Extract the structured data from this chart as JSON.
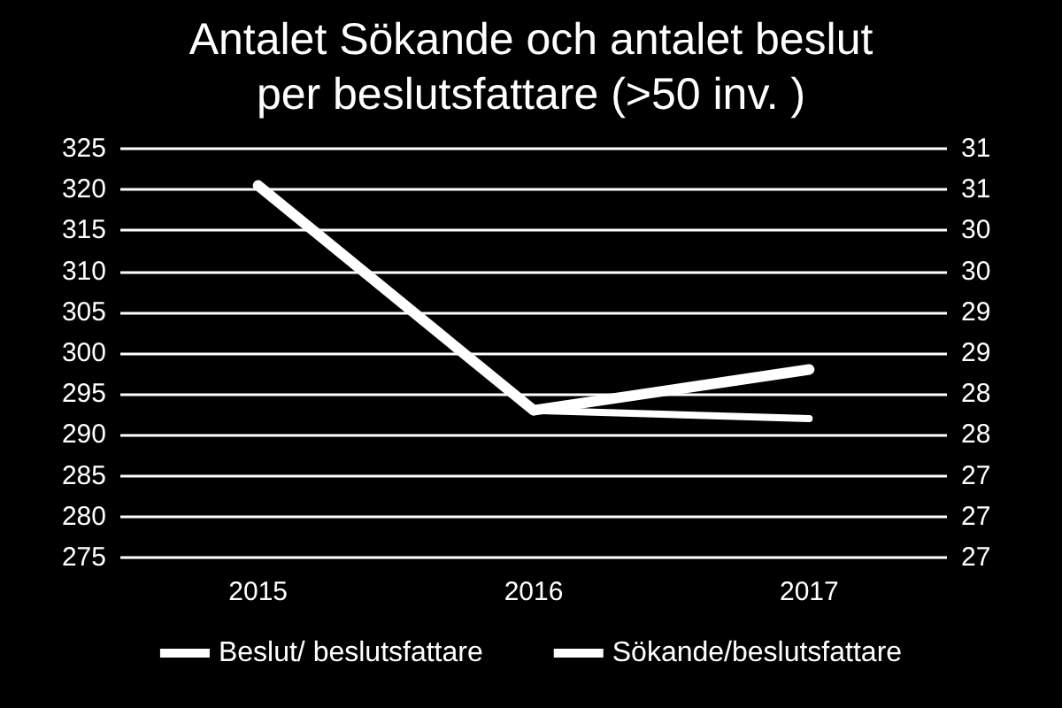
{
  "chart_data": {
    "type": "line",
    "title": "Antalet Sökande och antalet beslut\nper beslutsfattare (>50 inv. )",
    "categories": [
      "2015",
      "2016",
      "2017"
    ],
    "series": [
      {
        "name": "Beslut/ beslutsfattare",
        "color": "#ffffff",
        "values": [
          320.5,
          293,
          298
        ]
      },
      {
        "name": "Sökande/beslutsfattare",
        "color": "#ffffff",
        "values": [
          31.05,
          28.3,
          28.2
        ],
        "axis": "y2"
      }
    ],
    "ylim": [
      275,
      325
    ],
    "yticks": [
      275,
      280,
      285,
      290,
      295,
      300,
      305,
      310,
      315,
      320,
      325
    ],
    "y2lim": [
      26.5,
      31.5
    ],
    "y2ticks": [
      {
        "value": 26.5,
        "label": "27"
      },
      {
        "value": 27,
        "label": "27"
      },
      {
        "value": 27.5,
        "label": "27"
      },
      {
        "value": 28,
        "label": "28"
      },
      {
        "value": 28.5,
        "label": "28"
      },
      {
        "value": 29,
        "label": "29"
      },
      {
        "value": 29.5,
        "label": "29"
      },
      {
        "value": 30,
        "label": "30"
      },
      {
        "value": 30.5,
        "label": "30"
      },
      {
        "value": 31,
        "label": "31"
      },
      {
        "value": 31.5,
        "label": "31"
      }
    ],
    "grid": "y",
    "legend": "bottom",
    "marker": "none",
    "line_style": "solid"
  }
}
